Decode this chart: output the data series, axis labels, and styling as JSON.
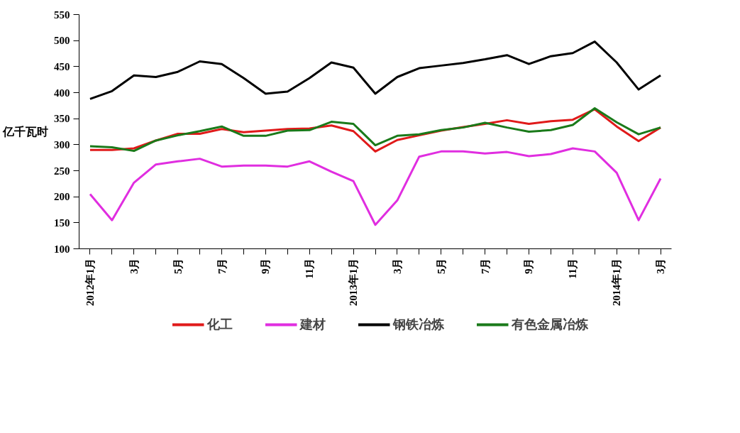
{
  "chart_data": {
    "type": "line",
    "ylabel": "亿千瓦时",
    "categories": [
      "2012年1月",
      null,
      "3月",
      null,
      "5月",
      null,
      "7月",
      null,
      "9月",
      null,
      "11月",
      null,
      "2013年1月",
      null,
      "3月",
      null,
      "5月",
      null,
      "7月",
      null,
      "9月",
      null,
      "11月",
      null,
      "2014年1月",
      null,
      "3月"
    ],
    "series": [
      {
        "name": "化工",
        "color": "#e01a1a",
        "values": [
          290,
          290,
          293,
          308,
          321,
          321,
          330,
          324,
          327,
          330,
          331,
          337,
          326,
          287,
          309,
          318,
          327,
          334,
          340,
          347,
          340,
          345,
          348,
          368,
          335,
          307,
          333
        ]
      },
      {
        "name": "建材",
        "color": "#e02ee0",
        "values": [
          205,
          155,
          227,
          262,
          268,
          273,
          258,
          260,
          260,
          258,
          268,
          248,
          230,
          146,
          193,
          277,
          287,
          287,
          283,
          286,
          278,
          282,
          293,
          287,
          246,
          155,
          235
        ]
      },
      {
        "name": "钢铁冶炼",
        "color": "#000000",
        "values": [
          388,
          403,
          433,
          430,
          440,
          460,
          455,
          428,
          398,
          402,
          428,
          458,
          448,
          398,
          430,
          447,
          452,
          457,
          464,
          472,
          455,
          470,
          476,
          498,
          458,
          406,
          433
        ]
      },
      {
        "name": "有色金属冶炼",
        "color": "#1a7a1a",
        "values": [
          297,
          295,
          288,
          308,
          318,
          326,
          335,
          317,
          317,
          327,
          328,
          344,
          340,
          299,
          317,
          320,
          328,
          333,
          342,
          333,
          325,
          328,
          338,
          370,
          343,
          320,
          333
        ]
      }
    ],
    "ylim": [
      100,
      550
    ],
    "yticks": [
      100,
      150,
      200,
      250,
      300,
      350,
      400,
      450,
      500,
      550
    ],
    "grid": false,
    "legend": "bottom",
    "marker": "none",
    "line_style": "solid"
  }
}
